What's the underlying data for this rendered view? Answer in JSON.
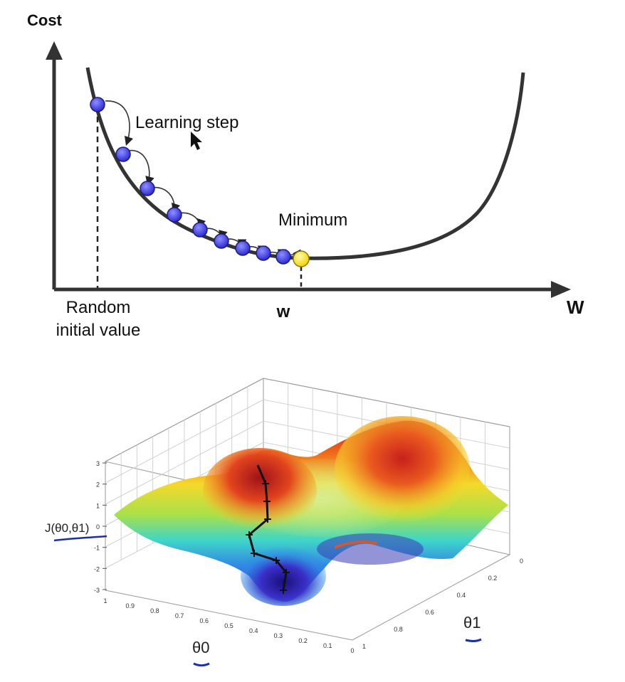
{
  "top_diagram": {
    "y_axis_label": "Cost",
    "x_axis_label": "W",
    "learning_step_label": "Learning step",
    "minimum_label": "Minimum",
    "random_initial_label": [
      "Random",
      "initial value"
    ],
    "w_marker_label": "w",
    "colors": {
      "curve": "#333333",
      "step_ball": "#3a3ae0",
      "minimum_ball": "#ffe81a"
    }
  },
  "surface_plot": {
    "z_axis_label": "J(θ0,θ1)",
    "theta0_label": "θ0",
    "theta1_label": "θ1",
    "z_ticks": [
      "3",
      "2",
      "1",
      "0",
      "-1",
      "-2",
      "-3"
    ],
    "theta0_ticks": [
      "1",
      "0.9",
      "0.8",
      "0.7",
      "0.6",
      "0.5",
      "0.4",
      "0.3",
      "0.2",
      "0.1",
      "0"
    ],
    "theta1_ticks": [
      "0",
      "0.2",
      "0.4",
      "0.6",
      "0.8",
      "1"
    ],
    "annotation_color": "#1a2fb0"
  }
}
